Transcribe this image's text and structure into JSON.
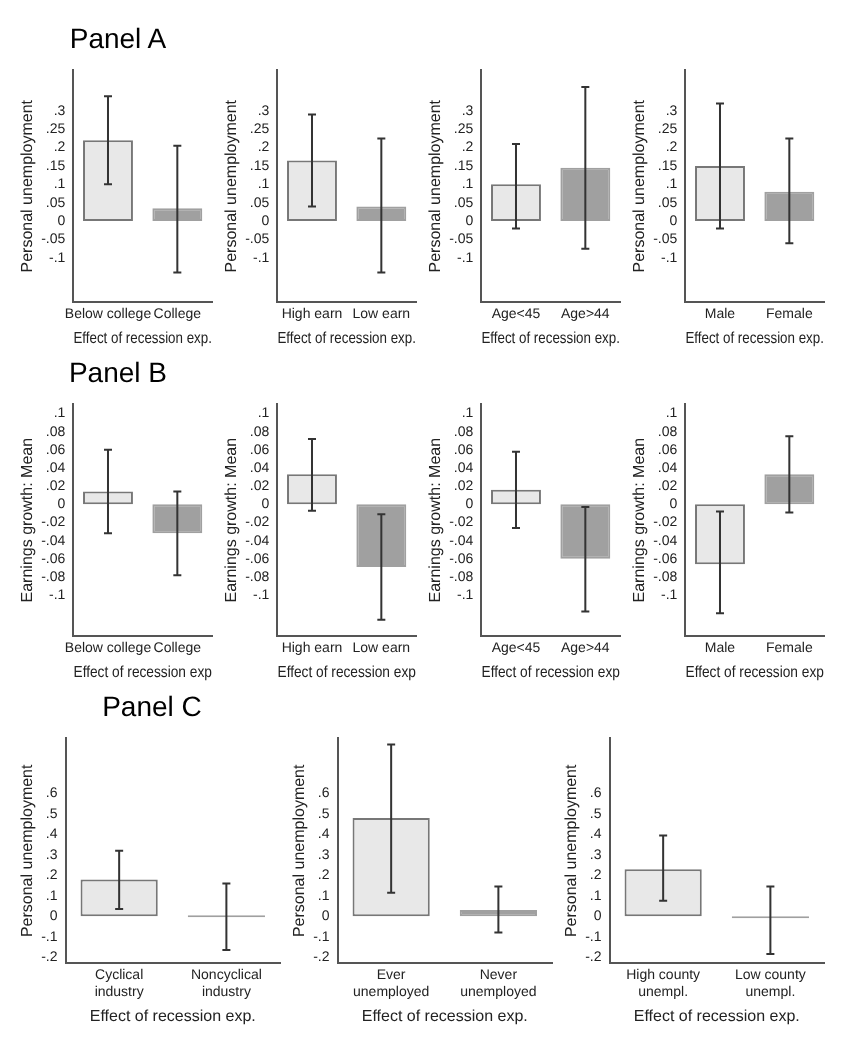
{
  "chart_data": [
    {
      "type": "bar",
      "title": "Panel A",
      "categories": [
        "Below college",
        "College"
      ],
      "values": [
        0.22,
        0.035
      ],
      "colors": [
        "#e8e8e8",
        "#a0a0a0"
      ],
      "errors": [
        [
          0.1,
          0.34
        ],
        [
          -0.14,
          0.205
        ]
      ],
      "ylim": [
        -0.22,
        0.41
      ],
      "yticks": [
        {
          "value": -0.1,
          "label": "-.1"
        },
        {
          "value": -0.05,
          "label": "-.05"
        },
        {
          "value": 0,
          "label": "0"
        },
        {
          "value": 0.05,
          "label": ".05"
        },
        {
          "value": 0.1,
          "label": ".1"
        },
        {
          "value": 0.15,
          "label": ".15"
        },
        {
          "value": 0.2,
          "label": ".2"
        },
        {
          "value": 0.25,
          "label": ".25"
        },
        {
          "value": 0.3,
          "label": ".3"
        }
      ],
      "ylabel": "Personal unemployment",
      "xlabel": "Effect of recession exp.",
      "grid": false
    },
    {
      "type": "bar",
      "categories": [
        "High earn",
        "Low earn"
      ],
      "values": [
        0.165,
        0.04
      ],
      "colors": [
        "#e8e8e8",
        "#a0a0a0"
      ],
      "errors": [
        [
          0.04,
          0.29
        ],
        [
          -0.14,
          0.225
        ]
      ],
      "ylim": [
        -0.22,
        0.41
      ],
      "yticks": [
        {
          "value": -0.1,
          "label": "-.1"
        },
        {
          "value": -0.05,
          "label": "-.05"
        },
        {
          "value": 0,
          "label": "0"
        },
        {
          "value": 0.05,
          "label": ".05"
        },
        {
          "value": 0.1,
          "label": ".1"
        },
        {
          "value": 0.15,
          "label": ".15"
        },
        {
          "value": 0.2,
          "label": ".2"
        },
        {
          "value": 0.25,
          "label": ".25"
        },
        {
          "value": 0.3,
          "label": ".3"
        }
      ],
      "ylabel": "Personal unemployment",
      "xlabel": "Effect of recession exp.",
      "grid": false
    },
    {
      "type": "bar",
      "categories": [
        "Age<45",
        "Age>44"
      ],
      "values": [
        0.1,
        0.145
      ],
      "colors": [
        "#e8e8e8",
        "#a0a0a0"
      ],
      "errors": [
        [
          -0.02,
          0.21
        ],
        [
          -0.075,
          0.365
        ]
      ],
      "ylim": [
        -0.22,
        0.41
      ],
      "yticks": [
        {
          "value": -0.1,
          "label": "-.1"
        },
        {
          "value": -0.05,
          "label": "-.05"
        },
        {
          "value": 0,
          "label": "0"
        },
        {
          "value": 0.05,
          "label": ".05"
        },
        {
          "value": 0.1,
          "label": ".1"
        },
        {
          "value": 0.15,
          "label": ".15"
        },
        {
          "value": 0.2,
          "label": ".2"
        },
        {
          "value": 0.25,
          "label": ".25"
        },
        {
          "value": 0.3,
          "label": ".3"
        }
      ],
      "ylabel": "Personal unemployment",
      "xlabel": "Effect of recession exp.",
      "grid": false
    },
    {
      "type": "bar",
      "categories": [
        "Male",
        "Female"
      ],
      "values": [
        0.15,
        0.08
      ],
      "colors": [
        "#e8e8e8",
        "#a0a0a0"
      ],
      "errors": [
        [
          -0.02,
          0.32
        ],
        [
          -0.06,
          0.225
        ]
      ],
      "ylim": [
        -0.22,
        0.41
      ],
      "yticks": [
        {
          "value": -0.1,
          "label": "-.1"
        },
        {
          "value": -0.05,
          "label": "-.05"
        },
        {
          "value": 0,
          "label": "0"
        },
        {
          "value": 0.05,
          "label": ".05"
        },
        {
          "value": 0.1,
          "label": ".1"
        },
        {
          "value": 0.15,
          "label": ".15"
        },
        {
          "value": 0.2,
          "label": ".2"
        },
        {
          "value": 0.25,
          "label": ".25"
        },
        {
          "value": 0.3,
          "label": ".3"
        }
      ],
      "ylabel": "Personal unemployment",
      "xlabel": "Effect of recession exp.",
      "grid": false
    },
    {
      "type": "bar",
      "title": "Panel B",
      "categories": [
        "Below college",
        "College"
      ],
      "values": [
        0.014,
        -0.032
      ],
      "colors": [
        "#e8e8e8",
        "#a0a0a0"
      ],
      "errors": [
        [
          -0.032,
          0.06
        ],
        [
          -0.078,
          0.014
        ]
      ],
      "ylim": [
        -0.145,
        0.11
      ],
      "yticks": [
        {
          "value": -0.1,
          "label": "-.1"
        },
        {
          "value": -0.08,
          "label": "-.08"
        },
        {
          "value": -0.06,
          "label": "-.06"
        },
        {
          "value": -0.04,
          "label": "-.04"
        },
        {
          "value": -0.02,
          "label": "-.02"
        },
        {
          "value": 0,
          "label": "0"
        },
        {
          "value": 0.02,
          "label": ".02"
        },
        {
          "value": 0.04,
          "label": ".04"
        },
        {
          "value": 0.06,
          "label": ".06"
        },
        {
          "value": 0.08,
          "label": ".08"
        },
        {
          "value": 0.1,
          "label": ".1"
        }
      ],
      "ylabel": "Earnings growth: Mean",
      "xlabel": "Effect of recession exp",
      "grid": false
    },
    {
      "type": "bar",
      "categories": [
        "High earn",
        "Low earn"
      ],
      "values": [
        0.033,
        -0.069
      ],
      "colors": [
        "#e8e8e8",
        "#a0a0a0"
      ],
      "errors": [
        [
          -0.007,
          0.072
        ],
        [
          -0.127,
          -0.011
        ]
      ],
      "ylim": [
        -0.145,
        0.11
      ],
      "yticks": [
        {
          "value": -0.1,
          "label": "-.1"
        },
        {
          "value": -0.08,
          "label": "-.08"
        },
        {
          "value": -0.06,
          "label": "-.06"
        },
        {
          "value": -0.04,
          "label": "-.04"
        },
        {
          "value": -0.02,
          "label": "-.02"
        },
        {
          "value": 0,
          "label": "0"
        },
        {
          "value": 0.02,
          "label": ".02"
        },
        {
          "value": 0.04,
          "label": ".04"
        },
        {
          "value": 0.06,
          "label": ".06"
        },
        {
          "value": 0.08,
          "label": ".08"
        },
        {
          "value": 0.1,
          "label": ".1"
        }
      ],
      "ylabel": "Earnings growth: Mean",
      "xlabel": "Effect of recession exp",
      "grid": false
    },
    {
      "type": "bar",
      "categories": [
        "Age<45",
        "Age>44"
      ],
      "values": [
        0.016,
        -0.06
      ],
      "colors": [
        "#e8e8e8",
        "#a0a0a0"
      ],
      "errors": [
        [
          -0.026,
          0.058
        ],
        [
          -0.118,
          -0.003
        ]
      ],
      "ylim": [
        -0.145,
        0.11
      ],
      "yticks": [
        {
          "value": -0.1,
          "label": "-.1"
        },
        {
          "value": -0.08,
          "label": "-.08"
        },
        {
          "value": -0.06,
          "label": "-.06"
        },
        {
          "value": -0.04,
          "label": "-.04"
        },
        {
          "value": -0.02,
          "label": "-.02"
        },
        {
          "value": 0,
          "label": "0"
        },
        {
          "value": 0.02,
          "label": ".02"
        },
        {
          "value": 0.04,
          "label": ".04"
        },
        {
          "value": 0.06,
          "label": ".06"
        },
        {
          "value": 0.08,
          "label": ".08"
        },
        {
          "value": 0.1,
          "label": ".1"
        }
      ],
      "ylabel": "Earnings growth: Mean",
      "xlabel": "Effect of recession exp",
      "grid": false
    },
    {
      "type": "bar",
      "categories": [
        "Male",
        "Female"
      ],
      "values": [
        -0.066,
        0.033
      ],
      "colors": [
        "#e8e8e8",
        "#a0a0a0"
      ],
      "errors": [
        [
          -0.12,
          -0.008
        ],
        [
          -0.009,
          0.075
        ]
      ],
      "ylim": [
        -0.145,
        0.11
      ],
      "yticks": [
        {
          "value": -0.1,
          "label": "-.1"
        },
        {
          "value": -0.08,
          "label": "-.08"
        },
        {
          "value": -0.06,
          "label": "-.06"
        },
        {
          "value": -0.04,
          "label": "-.04"
        },
        {
          "value": -0.02,
          "label": "-.02"
        },
        {
          "value": 0,
          "label": "0"
        },
        {
          "value": 0.02,
          "label": ".02"
        },
        {
          "value": 0.04,
          "label": ".04"
        },
        {
          "value": 0.06,
          "label": ".06"
        },
        {
          "value": 0.08,
          "label": ".08"
        },
        {
          "value": 0.1,
          "label": ".1"
        }
      ],
      "ylabel": "Earnings growth: Mean",
      "xlabel": "Effect of recession exp",
      "grid": false
    },
    {
      "type": "bar",
      "title": "Panel C",
      "categories": [
        "Cyclical industry",
        "Noncyclical industry"
      ],
      "values": [
        0.18,
        0
      ],
      "colors": [
        "#e8e8e8",
        "#a0a0a0"
      ],
      "errors": [
        [
          0.035,
          0.32
        ],
        [
          -0.165,
          0.16
        ]
      ],
      "ylim": [
        -0.23,
        0.87
      ],
      "yticks": [
        {
          "value": -0.2,
          "label": "-.2"
        },
        {
          "value": -0.1,
          "label": "-.1"
        },
        {
          "value": 0,
          "label": "0"
        },
        {
          "value": 0.1,
          "label": ".1"
        },
        {
          "value": 0.2,
          "label": ".2"
        },
        {
          "value": 0.3,
          "label": ".3"
        },
        {
          "value": 0.4,
          "label": ".4"
        },
        {
          "value": 0.5,
          "label": ".5"
        },
        {
          "value": 0.6,
          "label": ".6"
        }
      ],
      "ylabel": "Personal unemployment",
      "xlabel": "Effect of recession exp.",
      "grid": false
    },
    {
      "type": "bar",
      "categories": [
        "Ever unemployed",
        "Never unemployed"
      ],
      "values": [
        0.48,
        0.03
      ],
      "colors": [
        "#e8e8e8",
        "#a0a0a0"
      ],
      "errors": [
        [
          0.115,
          0.84
        ],
        [
          -0.08,
          0.145
        ]
      ],
      "ylim": [
        -0.23,
        0.87
      ],
      "yticks": [
        {
          "value": -0.2,
          "label": "-.2"
        },
        {
          "value": -0.1,
          "label": "-.1"
        },
        {
          "value": 0,
          "label": "0"
        },
        {
          "value": 0.1,
          "label": ".1"
        },
        {
          "value": 0.2,
          "label": ".2"
        },
        {
          "value": 0.3,
          "label": ".3"
        },
        {
          "value": 0.4,
          "label": ".4"
        },
        {
          "value": 0.5,
          "label": ".5"
        },
        {
          "value": 0.6,
          "label": ".6"
        }
      ],
      "ylabel": "Personal unemployment",
      "xlabel": "Effect of recession exp.",
      "grid": false
    },
    {
      "type": "bar",
      "categories": [
        "High county unempl.",
        "Low county unempl."
      ],
      "values": [
        0.23,
        -0.01
      ],
      "colors": [
        "#e8e8e8",
        "#a0a0a0"
      ],
      "errors": [
        [
          0.075,
          0.395
        ],
        [
          -0.185,
          0.145
        ]
      ],
      "ylim": [
        -0.23,
        0.87
      ],
      "yticks": [
        {
          "value": -0.2,
          "label": "-.2"
        },
        {
          "value": -0.1,
          "label": "-.1"
        },
        {
          "value": 0,
          "label": "0"
        },
        {
          "value": 0.1,
          "label": ".1"
        },
        {
          "value": 0.2,
          "label": ".2"
        },
        {
          "value": 0.3,
          "label": ".3"
        },
        {
          "value": 0.4,
          "label": ".4"
        },
        {
          "value": 0.5,
          "label": ".5"
        },
        {
          "value": 0.6,
          "label": ".6"
        }
      ],
      "ylabel": "Personal unemployment",
      "xlabel": "Effect of recession exp.",
      "grid": false
    }
  ]
}
